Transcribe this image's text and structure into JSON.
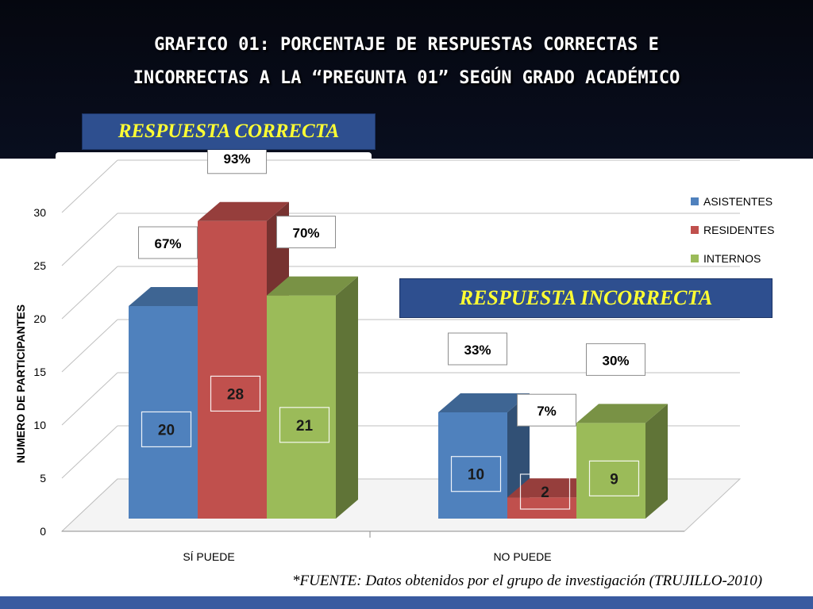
{
  "slide": {
    "title_line1": "GRAFICO 01:  PORCENTAJE DE RESPUESTAS CORRECTAS E",
    "title_line2": "INCORRECTAS A LA “PREGUNTA 01” SEGÚN GRADO ACADÉMICO",
    "banner_correct": "RESPUESTA CORRECTA",
    "banner_incorrect": "RESPUESTA INCORRECTA",
    "source": "*FUENTE: Datos obtenidos por el grupo de investigación  (TRUJILLO-2010)"
  },
  "colors": {
    "asistentes": "#4f81bd",
    "residentes": "#c0504d",
    "internos": "#9bbb59",
    "banner": "#2e4f8f",
    "banner_text": "#ffff33"
  },
  "chart_data": {
    "type": "bar",
    "style": "3d-clustered-column",
    "title": "",
    "xlabel": "",
    "ylabel": "NUMERO DE PARTICIPANTES",
    "ylim": [
      0,
      30
    ],
    "yticks": [
      0,
      5,
      10,
      15,
      20,
      25,
      30
    ],
    "grid": true,
    "legend_position": "right",
    "categories": [
      "SÍ PUEDE",
      "NO PUEDE"
    ],
    "series": [
      {
        "name": "ASISTENTES",
        "values": [
          20,
          10
        ],
        "percent_labels": [
          "67%",
          "33%"
        ]
      },
      {
        "name": "RESIDENTES",
        "values": [
          28,
          2
        ],
        "percent_labels": [
          "93%",
          "7%"
        ]
      },
      {
        "name": "INTERNOS",
        "values": [
          21,
          9
        ],
        "percent_labels": [
          "70%",
          "30%"
        ]
      }
    ]
  }
}
